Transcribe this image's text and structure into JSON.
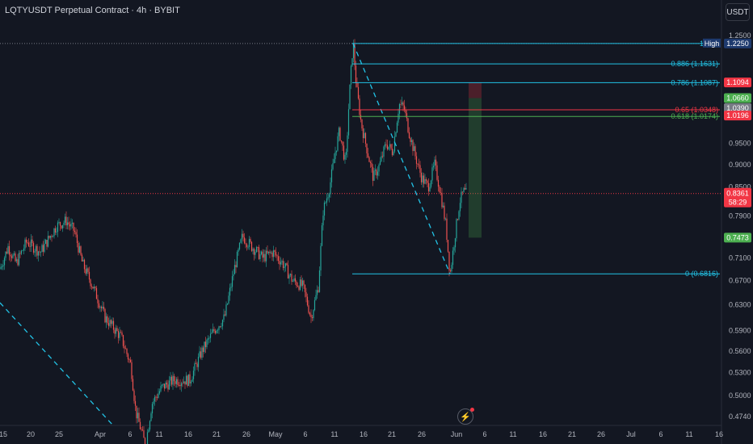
{
  "header": {
    "title": "LQTYUSDT Perpetual Contract · 4h · BYBIT",
    "currency_button": "USDT"
  },
  "colors": {
    "background": "#131722",
    "up": "#26a69a",
    "down": "#ef5350",
    "fib_cyan": "#22c3e6",
    "fib_red": "#f23645",
    "fib_green": "#4caf50",
    "axis_text": "#b2b5be"
  },
  "chart_data": {
    "type": "candlestick",
    "symbol": "LQTYUSDT",
    "timeframe": "4h",
    "exchange": "BYBIT",
    "scale": "log",
    "y_ticks": [
      "1.2500",
      "0.9500",
      "0.9000",
      "0.8500",
      "0.7900",
      "0.7100",
      "0.6700",
      "0.6300",
      "0.5900",
      "0.5600",
      "0.5300",
      "0.5000",
      "0.4740"
    ],
    "x_ticks": [
      "15",
      "20",
      "25",
      "Apr",
      "6",
      "11",
      "16",
      "21",
      "26",
      "May",
      "6",
      "11",
      "16",
      "21",
      "26",
      "Jun",
      "6",
      "11",
      "16",
      "21",
      "26",
      "Jul",
      "6",
      "11",
      "16"
    ],
    "series_path": [
      [
        0,
        0.69
      ],
      [
        10,
        0.73
      ],
      [
        20,
        0.7
      ],
      [
        33,
        0.74
      ],
      [
        50,
        0.72
      ],
      [
        70,
        0.77
      ],
      [
        82,
        0.78
      ],
      [
        92,
        0.76
      ],
      [
        102,
        0.7
      ],
      [
        115,
        0.66
      ],
      [
        130,
        0.61
      ],
      [
        150,
        0.58
      ],
      [
        162,
        0.54
      ],
      [
        168,
        0.48
      ],
      [
        174,
        0.46
      ],
      [
        180,
        0.44
      ],
      [
        188,
        0.49
      ],
      [
        200,
        0.51
      ],
      [
        215,
        0.52
      ],
      [
        235,
        0.52
      ],
      [
        250,
        0.56
      ],
      [
        265,
        0.59
      ],
      [
        278,
        0.61
      ],
      [
        290,
        0.69
      ],
      [
        300,
        0.75
      ],
      [
        312,
        0.73
      ],
      [
        325,
        0.71
      ],
      [
        338,
        0.72
      ],
      [
        350,
        0.7
      ],
      [
        362,
        0.67
      ],
      [
        375,
        0.66
      ],
      [
        385,
        0.61
      ],
      [
        394,
        0.66
      ],
      [
        400,
        0.8
      ],
      [
        408,
        0.85
      ],
      [
        415,
        0.93
      ],
      [
        420,
        0.98
      ],
      [
        428,
        0.9
      ],
      [
        432,
        1.06
      ],
      [
        437,
        1.23
      ],
      [
        441,
        1.1
      ],
      [
        447,
        1.0
      ],
      [
        456,
        0.92
      ],
      [
        462,
        0.87
      ],
      [
        470,
        0.9
      ],
      [
        478,
        0.95
      ],
      [
        486,
        0.93
      ],
      [
        494,
        1.05
      ],
      [
        500,
        1.04
      ],
      [
        506,
        0.98
      ],
      [
        514,
        0.92
      ],
      [
        522,
        0.87
      ],
      [
        530,
        0.85
      ],
      [
        538,
        0.9
      ],
      [
        545,
        0.84
      ],
      [
        552,
        0.77
      ],
      [
        557,
        0.68
      ],
      [
        563,
        0.75
      ],
      [
        569,
        0.82
      ],
      [
        574,
        0.84
      ],
      [
        577,
        0.836
      ]
    ],
    "high_label": "High",
    "last_price": "0.8361",
    "countdown": "58:29",
    "fibonacci": [
      {
        "label": "1 (1.2",
        "value": 1.225,
        "color": "#22c3e6"
      },
      {
        "label": "0.886 (1.1631)",
        "value": 1.1631,
        "color": "#22c3e6"
      },
      {
        "label": "0.786 (1.1087)",
        "value": 1.1087,
        "color": "#22c3e6"
      },
      {
        "label": "0.65 (1.0348)",
        "value": 1.0348,
        "color": "#f23645"
      },
      {
        "label": "0.618 (1.0174)",
        "value": 1.0174,
        "color": "#4caf50"
      },
      {
        "label": "0 (0.6816)",
        "value": 0.6816,
        "color": "#22c3e6"
      }
    ],
    "price_badges": [
      {
        "text": "1.2250",
        "value": 1.225,
        "bg": "#1e3a6e",
        "fg": "#ffffff"
      },
      {
        "text": "1.1094",
        "value": 1.1094,
        "bg": "#f23645",
        "fg": "#ffffff"
      },
      {
        "text": "1.0660",
        "value": 1.066,
        "bg": "#4caf50",
        "fg": "#ffffff"
      },
      {
        "text": "1.0391",
        "value": 1.0391,
        "bg": "#787b86",
        "fg": "#ffffff"
      },
      {
        "text": "1.0390",
        "value": 1.039,
        "bg": "#787b86",
        "fg": "#ffffff"
      },
      {
        "text": "1.0196",
        "value": 1.0196,
        "bg": "#f23645",
        "fg": "#ffffff"
      },
      {
        "text": "0.7473",
        "value": 0.7473,
        "bg": "#4caf50",
        "fg": "#ffffff"
      }
    ],
    "position_box": {
      "entry": 1.066,
      "stop": 1.1094,
      "target": 0.7473
    }
  }
}
